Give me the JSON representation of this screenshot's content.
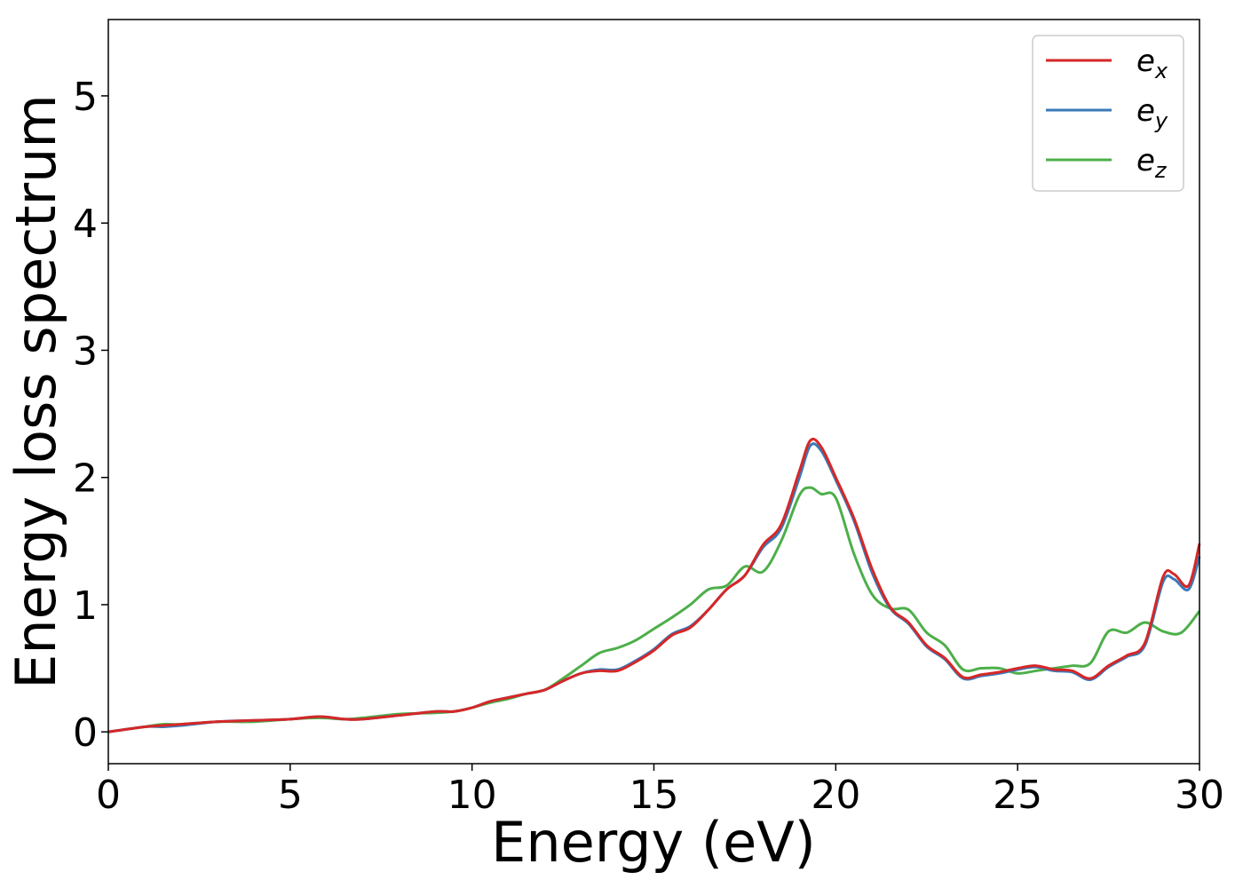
{
  "chart_data": {
    "type": "line",
    "title": "",
    "xlabel": "Energy (eV)",
    "ylabel": "Energy loss spectrum",
    "xlim": [
      0,
      30
    ],
    "ylim": [
      -0.25,
      5.6
    ],
    "x_ticks": [
      "0",
      "5",
      "10",
      "15",
      "20",
      "25",
      "30"
    ],
    "y_ticks": [
      "0",
      "1",
      "2",
      "3",
      "4",
      "5"
    ],
    "grid": false,
    "legend_position": "top-right",
    "series": [
      {
        "name": "e_x",
        "label_base": "e",
        "label_sub": "x",
        "color": "#d62728",
        "points": [
          [
            0,
            0.0
          ],
          [
            1,
            0.04
          ],
          [
            1.5,
            0.05
          ],
          [
            2,
            0.06
          ],
          [
            3,
            0.08
          ],
          [
            4,
            0.09
          ],
          [
            5,
            0.1
          ],
          [
            5.8,
            0.12
          ],
          [
            6.5,
            0.1
          ],
          [
            7,
            0.1
          ],
          [
            8,
            0.13
          ],
          [
            9,
            0.16
          ],
          [
            9.5,
            0.16
          ],
          [
            10,
            0.19
          ],
          [
            10.5,
            0.24
          ],
          [
            11,
            0.27
          ],
          [
            11.5,
            0.3
          ],
          [
            12,
            0.33
          ],
          [
            12.5,
            0.4
          ],
          [
            13,
            0.46
          ],
          [
            13.5,
            0.48
          ],
          [
            14,
            0.48
          ],
          [
            14.5,
            0.55
          ],
          [
            15,
            0.64
          ],
          [
            15.5,
            0.76
          ],
          [
            16,
            0.82
          ],
          [
            16.5,
            0.96
          ],
          [
            17,
            1.12
          ],
          [
            17.5,
            1.23
          ],
          [
            18,
            1.47
          ],
          [
            18.5,
            1.63
          ],
          [
            19,
            2.05
          ],
          [
            19.3,
            2.29
          ],
          [
            19.6,
            2.24
          ],
          [
            20,
            2.0
          ],
          [
            20.5,
            1.68
          ],
          [
            21,
            1.28
          ],
          [
            21.5,
            0.98
          ],
          [
            22,
            0.86
          ],
          [
            22.5,
            0.68
          ],
          [
            23,
            0.58
          ],
          [
            23.5,
            0.43
          ],
          [
            24,
            0.45
          ],
          [
            24.5,
            0.47
          ],
          [
            25,
            0.5
          ],
          [
            25.5,
            0.52
          ],
          [
            26,
            0.49
          ],
          [
            26.5,
            0.48
          ],
          [
            27,
            0.42
          ],
          [
            27.5,
            0.52
          ],
          [
            28,
            0.6
          ],
          [
            28.5,
            0.7
          ],
          [
            29,
            1.22
          ],
          [
            29.3,
            1.24
          ],
          [
            29.7,
            1.15
          ],
          [
            30,
            1.48
          ]
        ]
      },
      {
        "name": "e_y",
        "label_base": "e",
        "label_sub": "y",
        "color": "#3a7ab8",
        "points": [
          [
            0,
            0.0
          ],
          [
            1,
            0.04
          ],
          [
            1.5,
            0.04
          ],
          [
            2,
            0.05
          ],
          [
            3,
            0.08
          ],
          [
            4,
            0.09
          ],
          [
            5,
            0.1
          ],
          [
            5.8,
            0.12
          ],
          [
            6.5,
            0.1
          ],
          [
            7,
            0.1
          ],
          [
            8,
            0.13
          ],
          [
            9,
            0.16
          ],
          [
            9.5,
            0.16
          ],
          [
            10,
            0.19
          ],
          [
            10.5,
            0.24
          ],
          [
            11,
            0.27
          ],
          [
            11.5,
            0.3
          ],
          [
            12,
            0.33
          ],
          [
            12.5,
            0.4
          ],
          [
            13,
            0.46
          ],
          [
            13.5,
            0.49
          ],
          [
            14,
            0.49
          ],
          [
            14.5,
            0.56
          ],
          [
            15,
            0.65
          ],
          [
            15.5,
            0.77
          ],
          [
            16,
            0.83
          ],
          [
            16.5,
            0.96
          ],
          [
            17,
            1.12
          ],
          [
            17.5,
            1.23
          ],
          [
            18,
            1.45
          ],
          [
            18.5,
            1.6
          ],
          [
            19,
            2.0
          ],
          [
            19.3,
            2.25
          ],
          [
            19.6,
            2.21
          ],
          [
            20,
            1.98
          ],
          [
            20.5,
            1.66
          ],
          [
            21,
            1.25
          ],
          [
            21.5,
            0.97
          ],
          [
            22,
            0.85
          ],
          [
            22.5,
            0.67
          ],
          [
            23,
            0.57
          ],
          [
            23.5,
            0.42
          ],
          [
            24,
            0.44
          ],
          [
            24.5,
            0.46
          ],
          [
            25,
            0.49
          ],
          [
            25.5,
            0.51
          ],
          [
            26,
            0.48
          ],
          [
            26.5,
            0.47
          ],
          [
            27,
            0.41
          ],
          [
            27.5,
            0.51
          ],
          [
            28,
            0.59
          ],
          [
            28.5,
            0.68
          ],
          [
            29,
            1.18
          ],
          [
            29.3,
            1.2
          ],
          [
            29.7,
            1.12
          ],
          [
            30,
            1.38
          ]
        ]
      },
      {
        "name": "e_z",
        "label_base": "e",
        "label_sub": "z",
        "color": "#4daf4a",
        "points": [
          [
            0,
            0.0
          ],
          [
            1,
            0.04
          ],
          [
            1.5,
            0.06
          ],
          [
            2,
            0.06
          ],
          [
            3,
            0.08
          ],
          [
            4,
            0.08
          ],
          [
            5,
            0.1
          ],
          [
            5.8,
            0.11
          ],
          [
            6.5,
            0.1
          ],
          [
            7,
            0.11
          ],
          [
            8,
            0.14
          ],
          [
            9,
            0.15
          ],
          [
            9.5,
            0.16
          ],
          [
            10,
            0.19
          ],
          [
            10.5,
            0.23
          ],
          [
            11,
            0.26
          ],
          [
            11.5,
            0.3
          ],
          [
            12,
            0.33
          ],
          [
            12.5,
            0.42
          ],
          [
            13,
            0.52
          ],
          [
            13.5,
            0.62
          ],
          [
            14,
            0.66
          ],
          [
            14.5,
            0.72
          ],
          [
            15,
            0.81
          ],
          [
            15.5,
            0.9
          ],
          [
            16,
            1.0
          ],
          [
            16.5,
            1.12
          ],
          [
            17,
            1.15
          ],
          [
            17.5,
            1.3
          ],
          [
            18,
            1.26
          ],
          [
            18.5,
            1.5
          ],
          [
            19,
            1.86
          ],
          [
            19.3,
            1.92
          ],
          [
            19.6,
            1.87
          ],
          [
            20,
            1.84
          ],
          [
            20.5,
            1.4
          ],
          [
            21,
            1.08
          ],
          [
            21.5,
            0.97
          ],
          [
            22,
            0.96
          ],
          [
            22.5,
            0.78
          ],
          [
            23,
            0.68
          ],
          [
            23.5,
            0.49
          ],
          [
            24,
            0.5
          ],
          [
            24.5,
            0.5
          ],
          [
            25,
            0.46
          ],
          [
            25.5,
            0.48
          ],
          [
            26,
            0.5
          ],
          [
            26.5,
            0.52
          ],
          [
            27,
            0.54
          ],
          [
            27.5,
            0.79
          ],
          [
            28,
            0.78
          ],
          [
            28.5,
            0.86
          ],
          [
            29,
            0.79
          ],
          [
            29.5,
            0.78
          ],
          [
            30,
            0.95
          ]
        ]
      }
    ]
  }
}
